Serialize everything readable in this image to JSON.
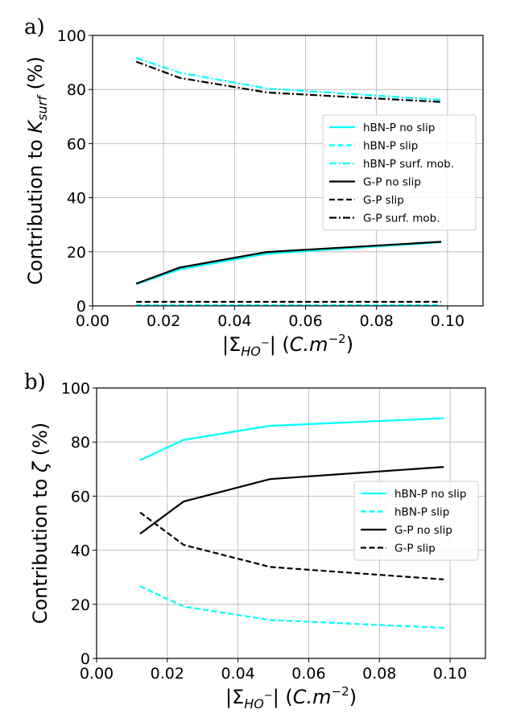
{
  "chart_data": [
    {
      "type": "line",
      "panel_label": "a)",
      "xlabel": "|Σ_HO⁻| (C.m⁻²)",
      "ylabel": "Contribution to K_surf (%)",
      "xlim": [
        0.0,
        0.11
      ],
      "ylim": [
        0,
        100
      ],
      "xticks": [
        "0.00",
        "0.02",
        "0.04",
        "0.06",
        "0.08",
        "0.10"
      ],
      "yticks": [
        "0",
        "20",
        "40",
        "60",
        "80",
        "100"
      ],
      "grid": true,
      "legend_position": "center-right",
      "x": [
        0.0123,
        0.0246,
        0.0491,
        0.0982
      ],
      "series": [
        {
          "name": "hBN-P no slip",
          "color": "#00ffff",
          "style": "solid",
          "values": [
            8.0,
            13.5,
            19.3,
            23.5
          ]
        },
        {
          "name": "hBN-P slip",
          "color": "#00ffff",
          "style": "dashed",
          "values": [
            0.3,
            0.3,
            0.3,
            0.3
          ]
        },
        {
          "name": "hBN-P surf. mob.",
          "color": "#00ffff",
          "style": "dashdot",
          "values": [
            91.7,
            86.2,
            80.4,
            76.2
          ]
        },
        {
          "name": "G-P no slip",
          "color": "#000000",
          "style": "solid",
          "values": [
            8.2,
            14.2,
            19.9,
            23.7
          ]
        },
        {
          "name": "G-P slip",
          "color": "#000000",
          "style": "dashed",
          "values": [
            1.5,
            1.5,
            1.5,
            1.5
          ]
        },
        {
          "name": "G-P surf. mob.",
          "color": "#000000",
          "style": "dashdot",
          "values": [
            90.3,
            84.3,
            78.9,
            75.4
          ]
        }
      ]
    },
    {
      "type": "line",
      "panel_label": "b)",
      "xlabel": "|Σ_HO⁻| (C.m⁻²)",
      "ylabel": "Contribution to ζ (%)",
      "xlim": [
        0.0,
        0.11
      ],
      "ylim": [
        0,
        100
      ],
      "xticks": [
        "0.00",
        "0.02",
        "0.04",
        "0.06",
        "0.08",
        "0.10"
      ],
      "yticks": [
        "0",
        "20",
        "40",
        "60",
        "80",
        "100"
      ],
      "grid": true,
      "legend_position": "center-right",
      "x": [
        0.0123,
        0.0246,
        0.0491,
        0.0982
      ],
      "series": [
        {
          "name": "hBN-P no slip",
          "color": "#00ffff",
          "style": "solid",
          "values": [
            73.3,
            80.8,
            86.0,
            88.8
          ]
        },
        {
          "name": "hBN-P slip",
          "color": "#00ffff",
          "style": "dashed",
          "values": [
            26.7,
            19.2,
            14.2,
            11.3
          ]
        },
        {
          "name": "G-P no slip",
          "color": "#000000",
          "style": "solid",
          "values": [
            46.1,
            58.0,
            66.3,
            70.8
          ]
        },
        {
          "name": "G-P slip",
          "color": "#000000",
          "style": "dashed",
          "values": [
            54.0,
            42.0,
            33.8,
            29.2
          ]
        }
      ]
    }
  ]
}
